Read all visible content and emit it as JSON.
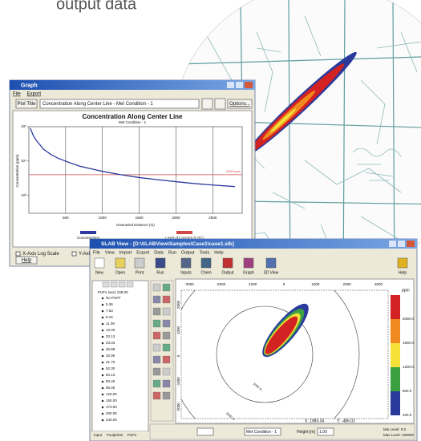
{
  "header": {
    "caption": "output data"
  },
  "graph_window": {
    "title": "Graph",
    "menu": [
      "File",
      "Export"
    ],
    "plot_title_button": "Plot Title",
    "plot_select": "Concentration Along Center Line - Met Condition - 1",
    "options_button": "Options...",
    "checkboxes": [
      "X-Axis Log Scale",
      "Y-Axis Log Scale"
    ],
    "help_button": "Help",
    "chart_data": {
      "type": "line",
      "title": "Concentration Along Center Line",
      "subtitle": "Met Condition - 1",
      "x_label": "Downwind Distance (m)",
      "y_label": "Concentration (ppm)",
      "x": [
        20,
        60,
        100,
        200,
        300,
        400,
        550,
        700,
        850,
        1000,
        1250,
        1500,
        1750,
        2000,
        2250,
        2500,
        2800
      ],
      "series": [
        {
          "name": "Concentration",
          "color": "#2b3a9c",
          "values": [
            90000,
            55000,
            40000,
            22000,
            15500,
            12000,
            9000,
            7000,
            5900,
            5000,
            4000,
            3300,
            2850,
            2500,
            2200,
            2000,
            1800
          ]
        }
      ],
      "reference_line": {
        "name": "Level of Concern (LOC)",
        "value": 4000,
        "label": "4000 ppm",
        "color": "#d04848"
      },
      "xlim": [
        0,
        2900
      ],
      "xticks": [
        500,
        1000,
        1500,
        2000,
        2500
      ],
      "ylim": [
        300,
        100000
      ],
      "yticks": [
        {
          "value": 1000,
          "label": "10³"
        },
        {
          "value": 10000,
          "label": "10⁴"
        },
        {
          "value": 100000,
          "label": "10⁵"
        }
      ],
      "log_scale": true,
      "grid": "x"
    }
  },
  "slab_window": {
    "title": "SLAB View - [D:\\SLABView\\Samples\\Case1\\case1.slb]",
    "menu": [
      "File",
      "View",
      "Import",
      "Export",
      "Data",
      "Run",
      "Output",
      "Tools",
      "Help"
    ],
    "toolbar": [
      "New",
      "Open",
      "Print",
      "Run",
      "Inputs",
      "Chem",
      "Output",
      "Graph",
      "3D View",
      "Help"
    ],
    "tree_root": "PUFs (sec) 108.00",
    "tree_items": [
      "No PUFF",
      "5.36",
      "7.63",
      "9.15",
      "11.38",
      "13.00",
      "20.13",
      "23.03",
      "26.88",
      "32.96",
      "41.70",
      "52.30",
      "60.13",
      "80.40",
      "96.46",
      "120.00",
      "150.00",
      "173.00",
      "200.00",
      "240.00"
    ],
    "tabs": [
      "Input",
      "Footprints",
      "PUFs"
    ],
    "ruler_x": [
      "-3000",
      "-2000",
      "-1000",
      "0",
      "1000",
      "2000",
      "3000"
    ],
    "ruler_y": [
      "2000",
      "1000",
      "0",
      "-1000",
      "-2000"
    ],
    "ring_labels": [
      "1000 m",
      "2000 m"
    ],
    "legend_unit": "ppm",
    "legend_labels": [
      "2000.0",
      "1600.0",
      "1200.0",
      "800.0",
      "400.0"
    ],
    "status": {
      "x": "X: 1983.34",
      "y": "Y: -486.02",
      "met": "Met Condition - 1",
      "height_label": "Height [m]",
      "height": "1.00",
      "min_level": "Min Level: 0.0",
      "max_level": "Max Level: 100000"
    }
  }
}
